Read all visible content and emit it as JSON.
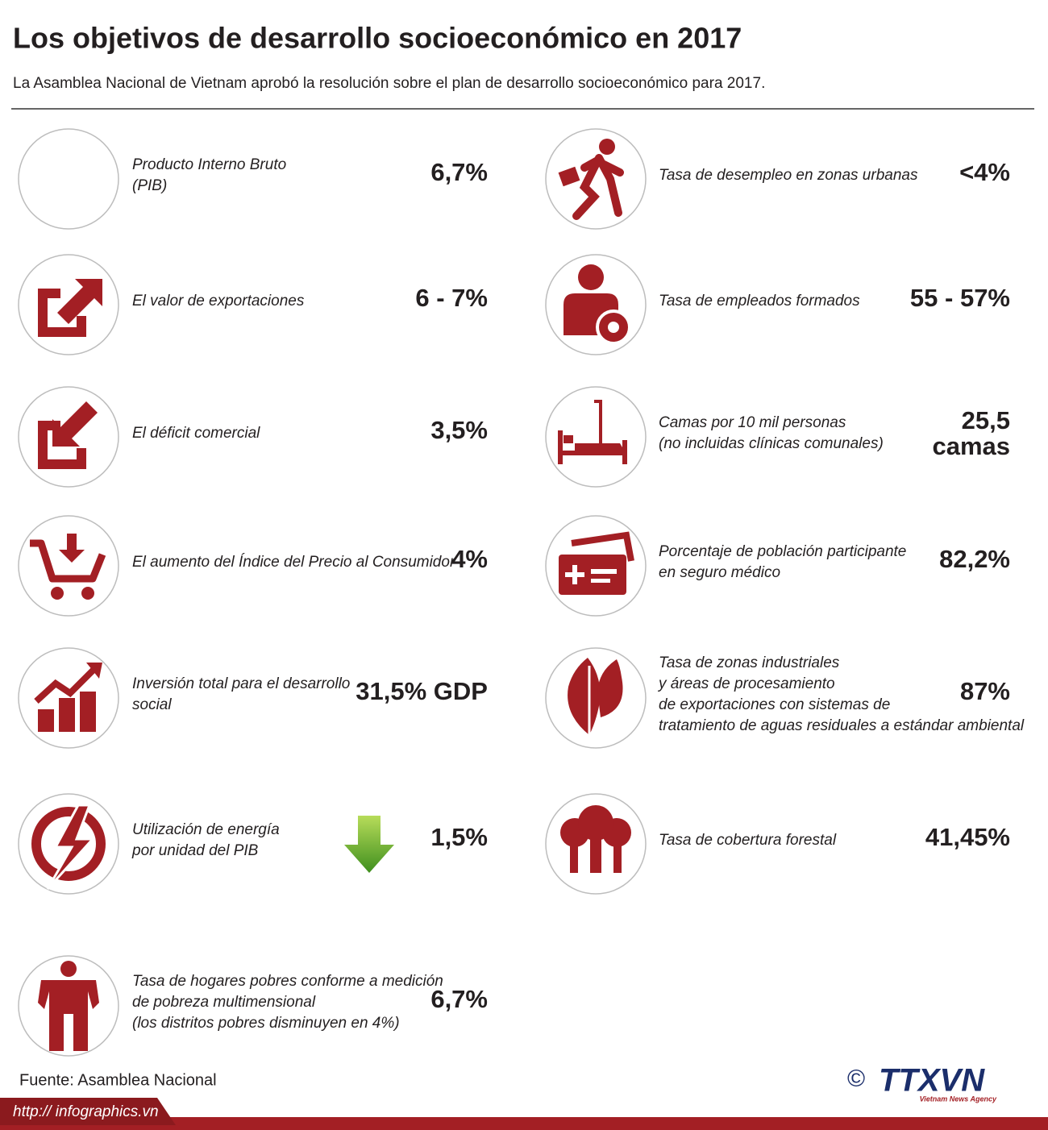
{
  "header": {
    "title": "Los objetivos de desarrollo socioeconómico en 2017",
    "subtitle": "La Asamblea Nacional de Vietnam aprobó la resolución sobre el plan de desarrollo socioeconómico para 2017."
  },
  "left": {
    "items": [
      {
        "label": [
          "Producto Interno Bruto",
          " (PIB)"
        ],
        "value": "6,7%"
      },
      {
        "label": [
          "El valor de exportaciones"
        ],
        "value": "6 - 7%"
      },
      {
        "label": [
          "El déficit comercial"
        ],
        "value": "3,5%"
      },
      {
        "label": [
          "El aumento del Índice del Precio al Consumidor"
        ],
        "value": "4%"
      },
      {
        "label": [
          "Inversión total para el desarrollo",
          "social"
        ],
        "value": "31,5% GDP"
      },
      {
        "label": [
          "Utilización de energía",
          "por unidad del PIB"
        ],
        "value": "1,5%"
      },
      {
        "label": [
          "Tasa de hogares  pobres conforme a medición",
          "de pobreza multimensional",
          "(los distritos pobres  disminuyen en 4%)"
        ],
        "value": "6,7%"
      }
    ]
  },
  "right": {
    "items": [
      {
        "label": [
          "Tasa de desempleo en zonas urbanas"
        ],
        "value": "<4%"
      },
      {
        "label": [
          "Tasa de empleados formados"
        ],
        "value": "55 - 57%"
      },
      {
        "label": [
          "Camas por 10 mil personas",
          "(no incluidas clínicas comunales)"
        ],
        "value": [
          "25,5",
          "camas"
        ]
      },
      {
        "label": [
          "Porcentaje de población participante",
          "en seguro médico"
        ],
        "value": "82,2%"
      },
      {
        "label": [
          "Tasa de zonas industriales",
          " y áreas de procesamiento",
          "de exportaciones con sistemas de",
          "tratamiento de aguas residuales a estándar ambiental"
        ],
        "value": "87%"
      },
      {
        "label": [
          "Tasa de cobertura forestal"
        ],
        "value": "41,45%"
      }
    ]
  },
  "footer": {
    "source": "Fuente: Asamblea Nacional",
    "url": "http:// infographics.vn",
    "copyright": "©",
    "logo": "TTXVN",
    "logo_sub": "Vietnam News Agency"
  }
}
